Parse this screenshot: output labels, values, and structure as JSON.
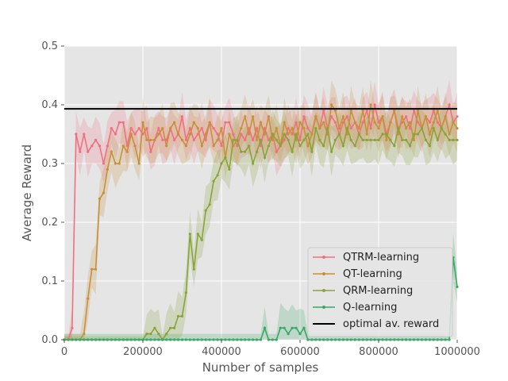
{
  "chart_data": {
    "type": "line",
    "title": "",
    "xlabel": "Number of samples",
    "ylabel": "Average Reward",
    "xlim": [
      0,
      1000000
    ],
    "ylim": [
      0,
      0.5
    ],
    "x_ticks": [
      0,
      200000,
      400000,
      600000,
      800000,
      1000000
    ],
    "x_tick_labels": [
      "0",
      "200000",
      "400000",
      "600000",
      "800000",
      "1000000"
    ],
    "y_ticks": [
      0.0,
      0.1,
      0.2,
      0.3,
      0.4,
      0.5
    ],
    "y_tick_labels": [
      "0.0",
      "0.1",
      "0.2",
      "0.3",
      "0.4",
      "0.5"
    ],
    "grid": true,
    "background": "#e5e5e5",
    "legend_position": "lower-right",
    "x": [
      0,
      10000,
      20000,
      30000,
      40000,
      50000,
      60000,
      70000,
      80000,
      90000,
      100000,
      110000,
      120000,
      130000,
      140000,
      150000,
      160000,
      170000,
      180000,
      190000,
      200000,
      210000,
      220000,
      230000,
      240000,
      250000,
      260000,
      270000,
      280000,
      290000,
      300000,
      310000,
      320000,
      330000,
      340000,
      350000,
      360000,
      370000,
      380000,
      390000,
      400000,
      410000,
      420000,
      430000,
      440000,
      450000,
      460000,
      470000,
      480000,
      490000,
      500000,
      510000,
      520000,
      530000,
      540000,
      550000,
      560000,
      570000,
      580000,
      590000,
      600000,
      610000,
      620000,
      630000,
      640000,
      650000,
      660000,
      670000,
      680000,
      690000,
      700000,
      710000,
      720000,
      730000,
      740000,
      750000,
      760000,
      770000,
      780000,
      790000,
      800000,
      810000,
      820000,
      830000,
      840000,
      850000,
      860000,
      870000,
      880000,
      890000,
      900000,
      910000,
      920000,
      930000,
      940000,
      950000,
      960000,
      970000,
      980000,
      990000,
      1000000
    ],
    "series": [
      {
        "name": "QTRM-learning",
        "color": "#f0707f",
        "values": [
          0,
          0,
          0.02,
          0.35,
          0.32,
          0.35,
          0.32,
          0.33,
          0.34,
          0.33,
          0.3,
          0.33,
          0.36,
          0.35,
          0.37,
          0.37,
          0.33,
          0.36,
          0.35,
          0.36,
          0.35,
          0.36,
          0.32,
          0.34,
          0.36,
          0.34,
          0.34,
          0.36,
          0.34,
          0.35,
          0.38,
          0.34,
          0.36,
          0.34,
          0.35,
          0.36,
          0.34,
          0.37,
          0.36,
          0.35,
          0.33,
          0.37,
          0.37,
          0.35,
          0.33,
          0.35,
          0.34,
          0.36,
          0.34,
          0.36,
          0.33,
          0.36,
          0.34,
          0.35,
          0.32,
          0.33,
          0.34,
          0.36,
          0.35,
          0.37,
          0.34,
          0.38,
          0.36,
          0.35,
          0.38,
          0.36,
          0.39,
          0.36,
          0.38,
          0.37,
          0.35,
          0.37,
          0.38,
          0.36,
          0.37,
          0.35,
          0.37,
          0.39,
          0.36,
          0.4,
          0.37,
          0.38,
          0.35,
          0.37,
          0.39,
          0.36,
          0.37,
          0.38,
          0.36,
          0.39,
          0.37,
          0.36,
          0.38,
          0.37,
          0.39,
          0.37,
          0.36,
          0.38,
          0.4,
          0.37,
          0.38
        ]
      },
      {
        "name": "QT-learning",
        "color": "#c7903a",
        "values": [
          0,
          0,
          0,
          0,
          0,
          0.01,
          0.07,
          0.12,
          0.12,
          0.24,
          0.25,
          0.29,
          0.32,
          0.3,
          0.3,
          0.33,
          0.32,
          0.35,
          0.33,
          0.3,
          0.37,
          0.34,
          0.34,
          0.34,
          0.35,
          0.36,
          0.33,
          0.36,
          0.37,
          0.35,
          0.34,
          0.33,
          0.35,
          0.37,
          0.36,
          0.33,
          0.35,
          0.37,
          0.33,
          0.34,
          0.36,
          0.31,
          0.35,
          0.33,
          0.34,
          0.36,
          0.38,
          0.35,
          0.38,
          0.34,
          0.37,
          0.35,
          0.38,
          0.34,
          0.36,
          0.33,
          0.37,
          0.35,
          0.36,
          0.34,
          0.37,
          0.36,
          0.33,
          0.35,
          0.38,
          0.36,
          0.37,
          0.35,
          0.4,
          0.39,
          0.36,
          0.38,
          0.35,
          0.39,
          0.37,
          0.36,
          0.39,
          0.35,
          0.4,
          0.37,
          0.36,
          0.38,
          0.34,
          0.37,
          0.39,
          0.35,
          0.38,
          0.36,
          0.37,
          0.34,
          0.39,
          0.36,
          0.38,
          0.35,
          0.37,
          0.39,
          0.36,
          0.38,
          0.35,
          0.37,
          0.36
        ]
      },
      {
        "name": "QRM-learning",
        "color": "#8aa338",
        "values": [
          0,
          0,
          0,
          0,
          0,
          0,
          0,
          0,
          0,
          0,
          0,
          0,
          0,
          0,
          0,
          0,
          0,
          0,
          0,
          0,
          0,
          0.01,
          0.01,
          0.02,
          0.01,
          0,
          0.01,
          0.02,
          0.02,
          0.04,
          0.04,
          0.08,
          0.18,
          0.12,
          0.18,
          0.17,
          0.22,
          0.23,
          0.27,
          0.28,
          0.3,
          0.31,
          0.29,
          0.34,
          0.34,
          0.32,
          0.32,
          0.33,
          0.3,
          0.32,
          0.34,
          0.31,
          0.33,
          0.35,
          0.34,
          0.33,
          0.35,
          0.34,
          0.32,
          0.35,
          0.33,
          0.34,
          0.35,
          0.32,
          0.36,
          0.34,
          0.33,
          0.36,
          0.32,
          0.34,
          0.35,
          0.33,
          0.36,
          0.34,
          0.33,
          0.35,
          0.34,
          0.34,
          0.34,
          0.34,
          0.34,
          0.35,
          0.35,
          0.34,
          0.33,
          0.36,
          0.34,
          0.34,
          0.33,
          0.35,
          0.35,
          0.36,
          0.34,
          0.33,
          0.36,
          0.34,
          0.36,
          0.35,
          0.34,
          0.34,
          0.34
        ]
      },
      {
        "name": "Q-learning",
        "color": "#3aa865",
        "values": [
          0,
          0,
          0,
          0,
          0,
          0,
          0,
          0,
          0,
          0,
          0,
          0,
          0,
          0,
          0,
          0,
          0,
          0,
          0,
          0,
          0,
          0,
          0,
          0,
          0,
          0,
          0,
          0,
          0,
          0,
          0,
          0,
          0,
          0,
          0,
          0,
          0,
          0,
          0,
          0,
          0,
          0,
          0,
          0,
          0,
          0,
          0,
          0,
          0,
          0,
          0,
          0.02,
          0,
          0,
          0,
          0.02,
          0.02,
          0.01,
          0.02,
          0.02,
          0.01,
          0.02,
          0,
          0,
          0,
          0,
          0,
          0,
          0,
          0,
          0,
          0,
          0,
          0,
          0,
          0,
          0,
          0,
          0,
          0,
          0,
          0,
          0,
          0,
          0,
          0,
          0,
          0,
          0,
          0,
          0,
          0,
          0,
          0,
          0,
          0,
          0,
          0,
          0,
          0.14,
          0.09
        ]
      }
    ],
    "reference_line": {
      "name": "optimal av. reward",
      "value": 0.393,
      "color": "#000000"
    }
  }
}
